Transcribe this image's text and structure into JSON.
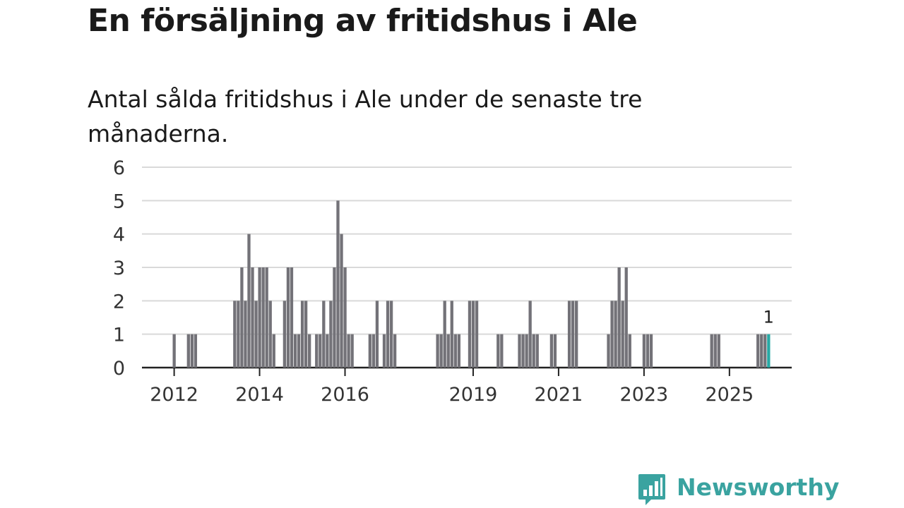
{
  "title": "En försäljning av fritidshus i Ale",
  "subtitle": "Antal sålda fritidshus i Ale under de senaste tre månaderna.",
  "brand": {
    "name": "Newsworthy",
    "color": "#3aa3a0",
    "icon": "bar-chart-speech-bubble-icon"
  },
  "colors": {
    "bar": "#737278",
    "highlight": "#27a9a5",
    "grid": "#d9d9d9",
    "axis": "#222222"
  },
  "chart_data": {
    "type": "bar",
    "x_axis": "month",
    "start": "2012-01",
    "end": "2025-12",
    "xticks": [
      "2012",
      "2014",
      "2016",
      "2019",
      "2021",
      "2023",
      "2025"
    ],
    "yticks": [
      "0",
      "1",
      "2",
      "3",
      "4",
      "5",
      "6"
    ],
    "ylim": [
      0,
      6
    ],
    "grid": true,
    "highlight": {
      "month": "2025-12",
      "value": 1,
      "label": "1"
    },
    "values": {
      "2012-01": 1,
      "2012-05": 1,
      "2012-06": 1,
      "2012-07": 1,
      "2013-06": 2,
      "2013-07": 2,
      "2013-08": 3,
      "2013-09": 2,
      "2013-10": 4,
      "2013-11": 3,
      "2013-12": 2,
      "2014-01": 3,
      "2014-02": 3,
      "2014-03": 3,
      "2014-04": 2,
      "2014-05": 1,
      "2014-08": 2,
      "2014-09": 3,
      "2014-10": 3,
      "2014-11": 1,
      "2014-12": 1,
      "2015-01": 2,
      "2015-02": 2,
      "2015-03": 1,
      "2015-05": 1,
      "2015-06": 1,
      "2015-07": 2,
      "2015-08": 1,
      "2015-09": 2,
      "2015-10": 3,
      "2015-11": 5,
      "2015-12": 4,
      "2016-01": 3,
      "2016-02": 1,
      "2016-03": 1,
      "2016-08": 1,
      "2016-09": 1,
      "2016-10": 2,
      "2016-12": 1,
      "2017-01": 2,
      "2017-02": 2,
      "2017-03": 1,
      "2018-03": 1,
      "2018-04": 1,
      "2018-05": 2,
      "2018-06": 1,
      "2018-07": 2,
      "2018-08": 1,
      "2018-09": 1,
      "2018-12": 2,
      "2019-01": 2,
      "2019-02": 2,
      "2019-08": 1,
      "2019-09": 1,
      "2020-02": 1,
      "2020-03": 1,
      "2020-04": 1,
      "2020-05": 2,
      "2020-06": 1,
      "2020-07": 1,
      "2020-11": 1,
      "2020-12": 1,
      "2021-04": 2,
      "2021-05": 2,
      "2021-06": 2,
      "2022-03": 1,
      "2022-04": 2,
      "2022-05": 2,
      "2022-06": 3,
      "2022-07": 2,
      "2022-08": 3,
      "2022-09": 1,
      "2023-01": 1,
      "2023-02": 1,
      "2023-03": 1,
      "2024-08": 1,
      "2024-09": 1,
      "2024-10": 1,
      "2025-09": 1,
      "2025-10": 1,
      "2025-11": 1,
      "2025-12": 1
    }
  }
}
